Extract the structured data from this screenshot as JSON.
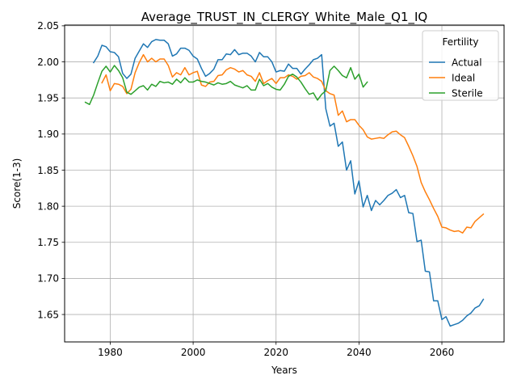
{
  "chart_data": {
    "type": "line",
    "title": "Average_TRUST_IN_CLERGY_White_Male_Q1_IQ",
    "xlabel": "Years",
    "ylabel": "Score(1-3)",
    "xlim": [
      1969,
      2075
    ],
    "ylim": [
      1.612,
      2.051
    ],
    "grid": true,
    "legend": {
      "title": "Fertility",
      "placement": "top-right"
    },
    "x_ticks": [
      1980,
      2000,
      2020,
      2040,
      2060
    ],
    "y_ticks": [
      1.65,
      1.7,
      1.75,
      1.8,
      1.85,
      1.9,
      1.95,
      2.0,
      2.05
    ],
    "series": [
      {
        "name": "Actual",
        "color": "#1f77b4",
        "x": [
          1976,
          1977,
          1978,
          1979,
          1980,
          1981,
          1982,
          1983,
          1984,
          1985,
          1986,
          1987,
          1988,
          1989,
          1990,
          1991,
          1992,
          1993,
          1994,
          1995,
          1996,
          1997,
          1998,
          1999,
          2000,
          2001,
          2002,
          2003,
          2004,
          2005,
          2006,
          2007,
          2008,
          2009,
          2010,
          2011,
          2012,
          2013,
          2014,
          2015,
          2016,
          2017,
          2018,
          2019,
          2020,
          2021,
          2022,
          2023,
          2024,
          2025,
          2026,
          2027,
          2028,
          2029,
          2030,
          2031,
          2032,
          2033,
          2034,
          2035,
          2036,
          2037,
          2038,
          2039,
          2040,
          2041,
          2042,
          2043,
          2044,
          2045,
          2046,
          2047,
          2048,
          2049,
          2050,
          2051,
          2052,
          2053,
          2054,
          2055,
          2056,
          2057,
          2058,
          2059,
          2060,
          2061,
          2062,
          2063,
          2064,
          2065,
          2066,
          2067,
          2068,
          2069,
          2070
        ],
        "values": [
          1.999,
          2.008,
          2.023,
          2.021,
          2.014,
          2.013,
          2.007,
          1.984,
          1.977,
          1.983,
          2.005,
          2.015,
          2.025,
          2.02,
          2.028,
          2.031,
          2.03,
          2.03,
          2.025,
          2.008,
          2.011,
          2.019,
          2.019,
          2.016,
          2.008,
          2.004,
          1.991,
          1.98,
          1.984,
          1.99,
          2.003,
          2.003,
          2.011,
          2.01,
          2.017,
          2.01,
          2.012,
          2.012,
          2.008,
          2.0,
          2.013,
          2.007,
          2.007,
          2.0,
          1.986,
          1.988,
          1.987,
          1.997,
          1.991,
          1.991,
          1.983,
          1.99,
          1.996,
          2.003,
          2.005,
          2.01,
          1.935,
          1.911,
          1.915,
          1.883,
          1.889,
          1.85,
          1.863,
          1.817,
          1.835,
          1.799,
          1.815,
          1.794,
          1.808,
          1.802,
          1.808,
          1.815,
          1.818,
          1.823,
          1.812,
          1.815,
          1.791,
          1.79,
          1.751,
          1.753,
          1.71,
          1.709,
          1.669,
          1.669,
          1.643,
          1.647,
          1.634,
          1.636,
          1.638,
          1.642,
          1.648,
          1.652,
          1.659,
          1.662,
          1.671
        ]
      },
      {
        "name": "Ideal",
        "color": "#ff7f0e",
        "x": [
          1978,
          1979,
          1980,
          1981,
          1982,
          1983,
          1984,
          1985,
          1986,
          1987,
          1988,
          1989,
          1990,
          1991,
          1992,
          1993,
          1994,
          1995,
          1996,
          1997,
          1998,
          1999,
          2000,
          2001,
          2002,
          2003,
          2004,
          2005,
          2006,
          2007,
          2008,
          2009,
          2010,
          2011,
          2012,
          2013,
          2014,
          2015,
          2016,
          2017,
          2018,
          2019,
          2020,
          2021,
          2022,
          2023,
          2024,
          2025,
          2026,
          2027,
          2028,
          2029,
          2030,
          2031,
          2032,
          2033,
          2034,
          2035,
          2036,
          2037,
          2038,
          2039,
          2040,
          2041,
          2042,
          2043,
          2044,
          2045,
          2046,
          2047,
          2048,
          2049,
          2050,
          2051,
          2052,
          2053,
          2054,
          2055,
          2056,
          2057,
          2058,
          2059,
          2060,
          2061,
          2062,
          2063,
          2064,
          2065,
          2066,
          2067,
          2068,
          2069,
          2070
        ],
        "values": [
          1.971,
          1.982,
          1.96,
          1.97,
          1.969,
          1.966,
          1.956,
          1.962,
          1.985,
          1.999,
          2.01,
          2.0,
          2.005,
          2.0,
          2.004,
          2.004,
          1.995,
          1.979,
          1.985,
          1.982,
          1.992,
          1.982,
          1.985,
          1.987,
          1.968,
          1.966,
          1.972,
          1.973,
          1.981,
          1.982,
          1.989,
          1.992,
          1.99,
          1.986,
          1.988,
          1.982,
          1.98,
          1.973,
          1.985,
          1.97,
          1.974,
          1.977,
          1.97,
          1.978,
          1.978,
          1.982,
          1.98,
          1.976,
          1.98,
          1.981,
          1.985,
          1.979,
          1.977,
          1.973,
          1.96,
          1.956,
          1.954,
          1.926,
          1.932,
          1.917,
          1.92,
          1.92,
          1.912,
          1.906,
          1.896,
          1.893,
          1.894,
          1.895,
          1.894,
          1.899,
          1.903,
          1.904,
          1.899,
          1.895,
          1.883,
          1.87,
          1.855,
          1.833,
          1.82,
          1.809,
          1.797,
          1.786,
          1.771,
          1.77,
          1.767,
          1.765,
          1.766,
          1.763,
          1.771,
          1.77,
          1.779,
          1.784,
          1.789
        ]
      },
      {
        "name": "Sterile",
        "color": "#2ca02c",
        "x": [
          1974,
          1975,
          1976,
          1977,
          1978,
          1979,
          1980,
          1981,
          1982,
          1983,
          1984,
          1985,
          1986,
          1987,
          1988,
          1989,
          1990,
          1991,
          1992,
          1993,
          1994,
          1995,
          1996,
          1997,
          1998,
          1999,
          2000,
          2001,
          2002,
          2003,
          2004,
          2005,
          2006,
          2007,
          2008,
          2009,
          2010,
          2011,
          2012,
          2013,
          2014,
          2015,
          2016,
          2017,
          2018,
          2019,
          2020,
          2021,
          2022,
          2023,
          2024,
          2025,
          2026,
          2027,
          2028,
          2029,
          2030,
          2031,
          2032,
          2033,
          2034,
          2035,
          2036,
          2037,
          2038,
          2039,
          2040,
          2041,
          2042
        ],
        "values": [
          1.944,
          1.941,
          1.954,
          1.971,
          1.987,
          1.994,
          1.986,
          1.995,
          1.988,
          1.978,
          1.958,
          1.955,
          1.96,
          1.965,
          1.967,
          1.961,
          1.969,
          1.966,
          1.973,
          1.971,
          1.972,
          1.969,
          1.976,
          1.971,
          1.978,
          1.972,
          1.972,
          1.975,
          1.973,
          1.972,
          1.97,
          1.968,
          1.971,
          1.969,
          1.97,
          1.973,
          1.968,
          1.966,
          1.964,
          1.967,
          1.961,
          1.961,
          1.976,
          1.967,
          1.97,
          1.965,
          1.962,
          1.961,
          1.969,
          1.98,
          1.983,
          1.979,
          1.972,
          1.963,
          1.955,
          1.957,
          1.947,
          1.955,
          1.96,
          1.988,
          1.994,
          1.988,
          1.981,
          1.978,
          1.992,
          1.976,
          1.983,
          1.965,
          1.972
        ]
      }
    ]
  }
}
